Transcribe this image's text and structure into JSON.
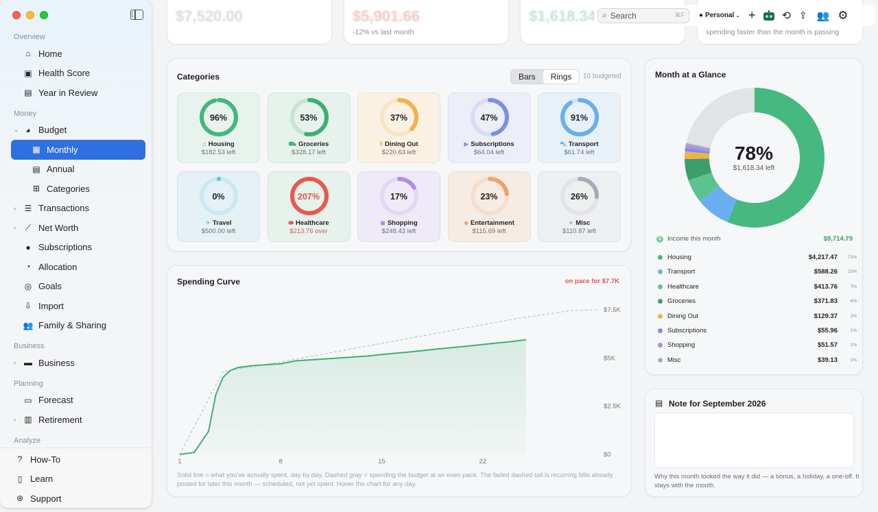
{
  "sidebar": {
    "sections": {
      "overview": "Overview",
      "money": "Money",
      "business": "Business",
      "planning": "Planning",
      "analyze": "Analyze"
    },
    "items": {
      "home": "Home",
      "health": "Health Score",
      "year": "Year in Review",
      "budget": "Budget",
      "monthly": "Monthly",
      "annual": "Annual",
      "categories": "Categories",
      "transactions": "Transactions",
      "networth": "Net Worth",
      "subscriptions": "Subscriptions",
      "allocation": "Allocation",
      "goals": "Goals",
      "import": "Import",
      "family": "Family & Sharing",
      "business": "Business",
      "forecast": "Forecast",
      "retirement": "Retirement"
    },
    "bottom": {
      "howto": "How-To",
      "learn": "Learn",
      "support": "Support"
    }
  },
  "topcards": [
    {
      "big": "$7,520.00",
      "sub": ""
    },
    {
      "big": "$5,901.66",
      "sub": "-12% vs last month"
    },
    {
      "big": "$1,618.34",
      "sub": ""
    },
    {
      "big": "",
      "sub": "spending faster than the month is passing"
    }
  ],
  "toolbar": {
    "search_placeholder": "Search",
    "search_shortcut": "⌘F",
    "profile": "Personal"
  },
  "categories_card": {
    "title": "Categories",
    "seg_bars": "Bars",
    "seg_rings": "Rings",
    "budgeted": "10 budgeted",
    "tiles": [
      {
        "name": "Housing",
        "pct": "96%",
        "value": 0.96,
        "left": "$182.53 left",
        "color": "#43b67e",
        "bg": "#e8f3ee",
        "icon": "house-icon",
        "glyph": "⌂"
      },
      {
        "name": "Groceries",
        "pct": "53%",
        "value": 0.53,
        "left": "$328.17 left",
        "color": "#3fae76",
        "bg": "#e6f2ec",
        "icon": "cart-icon",
        "glyph": "⛟"
      },
      {
        "name": "Dining Out",
        "pct": "37%",
        "value": 0.37,
        "left": "$220.63 left",
        "color": "#f1b24a",
        "bg": "#fbf1e3",
        "icon": "fork-knife-icon",
        "glyph": "ǁ"
      },
      {
        "name": "Subscriptions",
        "pct": "47%",
        "value": 0.47,
        "left": "$64.04 left",
        "color": "#7b8fe6",
        "bg": "#eceef8",
        "icon": "play-icon",
        "glyph": "▶"
      },
      {
        "name": "Transport",
        "pct": "91%",
        "value": 0.91,
        "left": "$61.74 left",
        "color": "#6aaef0",
        "bg": "#e8f0f8",
        "icon": "car-icon",
        "glyph": "⛍"
      },
      {
        "name": "Travel",
        "pct": "0%",
        "value": 0.0,
        "left": "$500.00 left",
        "color": "#5fc0e3",
        "bg": "#e5f1f5",
        "icon": "airplane-icon",
        "glyph": "✈"
      },
      {
        "name": "Healthcare",
        "pct": "207%",
        "value": 1.0,
        "left": "$213.76 over",
        "over": true,
        "color": "#e8594f",
        "bg": "#e6f2ec",
        "icon": "pill-icon",
        "glyph": "⬬"
      },
      {
        "name": "Shopping",
        "pct": "17%",
        "value": 0.17,
        "left": "$248.43 left",
        "color": "#b08ce8",
        "bg": "#efeaf7",
        "icon": "bag-icon",
        "glyph": "◼"
      },
      {
        "name": "Entertainment",
        "pct": "23%",
        "value": 0.23,
        "left": "$115.69 left",
        "color": "#f0a26a",
        "bg": "#f7ece4",
        "icon": "ticket-icon",
        "glyph": "◆"
      },
      {
        "name": "Misc",
        "pct": "26%",
        "value": 0.26,
        "left": "$110.87 left",
        "color": "#a5adb8",
        "bg": "#eeeff1",
        "icon": "sparkle-icon",
        "glyph": "✦"
      }
    ]
  },
  "spending_curve": {
    "title": "Spending Curve",
    "pace": "on pace for $7.7K",
    "note": "Solid line = what you've actually spent, day by day. Dashed gray = spending the budget at an even pace. The faded dashed tail is recurring bills already posted for later this month — scheduled, not yet spent. Hover the chart for any day."
  },
  "chart_data": {
    "type": "line",
    "title": "Spending Curve",
    "xlabel": "",
    "ylabel": "",
    "x_ticks": [
      "1",
      "8",
      "15",
      "22"
    ],
    "y_ticks": [
      "$0",
      "$2.5K",
      "$5K",
      "$7.5K"
    ],
    "xlim": [
      1,
      30
    ],
    "ylim": [
      0,
      7500
    ],
    "series": [
      {
        "style": "solid",
        "x": [
          1,
          2,
          3,
          3.5,
          4,
          4.5,
          5,
          6,
          7,
          8,
          9,
          10,
          11,
          12,
          13,
          14,
          15,
          16,
          17,
          18,
          19,
          20,
          21,
          22,
          23,
          24,
          25
        ],
        "y": [
          0,
          100,
          1200,
          3100,
          4000,
          4350,
          4500,
          4600,
          4650,
          4700,
          4850,
          4900,
          4950,
          5000,
          5050,
          5100,
          5180,
          5250,
          5320,
          5400,
          5480,
          5550,
          5620,
          5700,
          5780,
          5850,
          5950
        ]
      },
      {
        "style": "dashed",
        "x": [
          1,
          4,
          8,
          12,
          16,
          20,
          24,
          28,
          30
        ],
        "y": [
          0,
          4300,
          4800,
          5350,
          5900,
          6450,
          7000,
          7450,
          7500
        ]
      }
    ]
  },
  "glance": {
    "title": "Month at a Glance",
    "center_pct": "78%",
    "center_left": "$1,618.34 left",
    "income_label": "Income this month",
    "income_value": "$9,714.79",
    "rows": [
      {
        "name": "Housing",
        "value": "$4,217.47",
        "pct": "71%",
        "amount": 4217.47,
        "color": "#46b980"
      },
      {
        "name": "Transport",
        "value": "$588.26",
        "pct": "10%",
        "amount": 588.26,
        "color": "#6aaef0"
      },
      {
        "name": "Healthcare",
        "value": "$413.76",
        "pct": "7%",
        "amount": 413.76,
        "color": "#5cc28f"
      },
      {
        "name": "Groceries",
        "value": "$371.83",
        "pct": "6%",
        "amount": 371.83,
        "color": "#3c9e6a"
      },
      {
        "name": "Dining Out",
        "value": "$129.37",
        "pct": "2%",
        "amount": 129.37,
        "color": "#f1b24a"
      },
      {
        "name": "Subscriptions",
        "value": "$55.96",
        "pct": "1%",
        "amount": 55.96,
        "color": "#7b8fe6"
      },
      {
        "name": "Shopping",
        "value": "$51.57",
        "pct": "1%",
        "amount": 51.57,
        "color": "#b08ce8"
      },
      {
        "name": "Misc",
        "value": "$39.13",
        "pct": "1%",
        "amount": 39.13,
        "color": "#a5adb8"
      }
    ],
    "remaining_amount": 1618.34,
    "remaining_color": "#e2e3e5"
  },
  "note": {
    "title": "Note for September 2026",
    "footer": "Why this month looked the way it did — a bonus, a holiday, a one-off. It stays with the month."
  }
}
